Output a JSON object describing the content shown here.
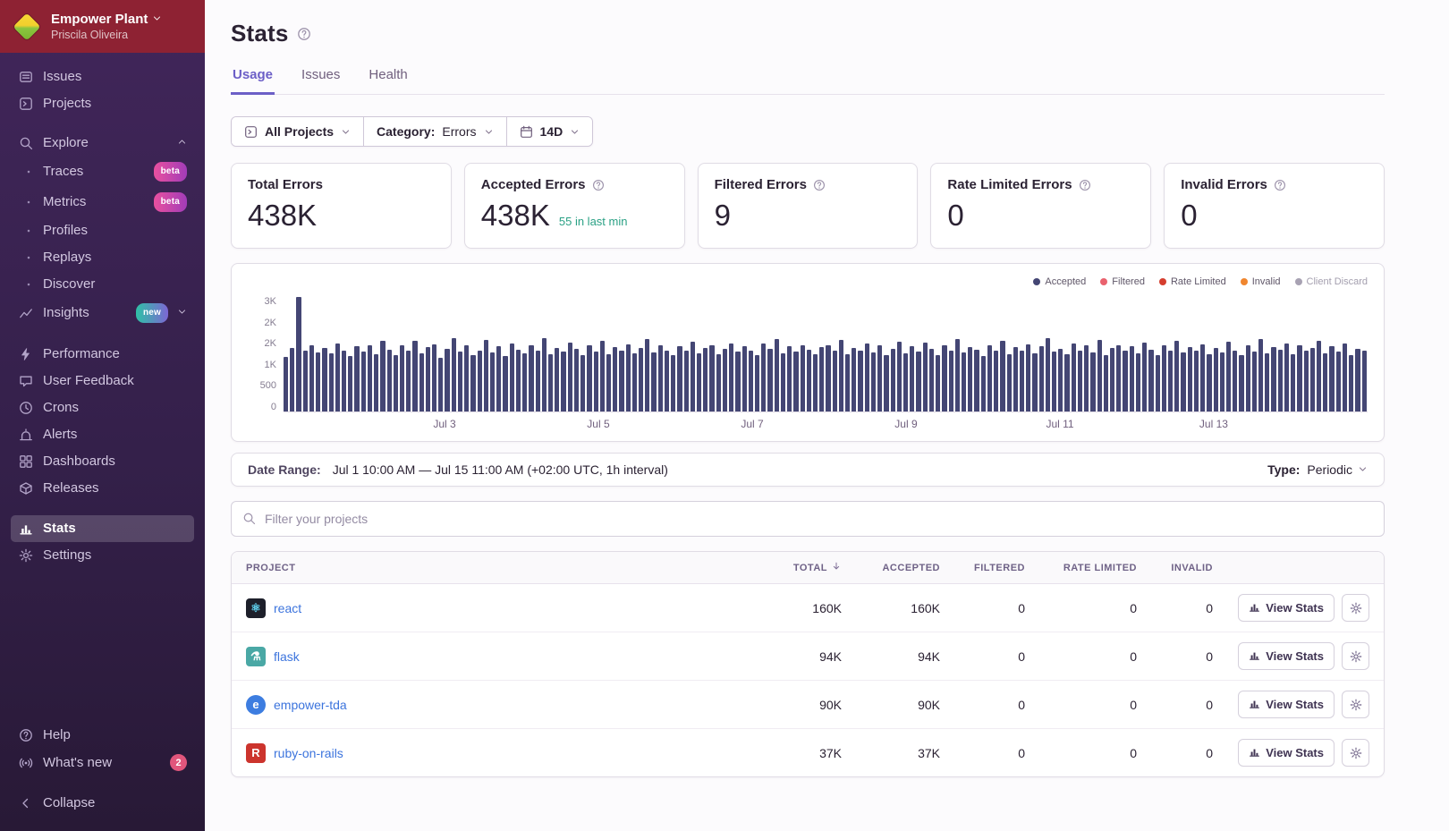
{
  "theme": {
    "accent": "#6c5fc7",
    "link_blue": "#3c74dd",
    "success_green": "#2ba185",
    "bar_color": "#444674",
    "org_header_red": "#8e2233"
  },
  "sidebar": {
    "org": {
      "name": "Empower Plant",
      "user": "Priscila Oliveira"
    },
    "sections": [
      {
        "items": [
          {
            "label": "Issues",
            "icon": "issues"
          },
          {
            "label": "Projects",
            "icon": "projects"
          }
        ]
      },
      {
        "header": {
          "label": "Explore",
          "icon": "search"
        },
        "items": [
          {
            "label": "Traces",
            "icon": "dot",
            "badge": "beta"
          },
          {
            "label": "Metrics",
            "icon": "dot",
            "badge": "beta"
          },
          {
            "label": "Profiles",
            "icon": "dot"
          },
          {
            "label": "Replays",
            "icon": "dot"
          },
          {
            "label": "Discover",
            "icon": "dot"
          },
          {
            "label": "Insights",
            "icon": "insights",
            "badge": "new",
            "chevron": true
          }
        ]
      },
      {
        "items": [
          {
            "label": "Performance",
            "icon": "performance"
          },
          {
            "label": "User Feedback",
            "icon": "feedback"
          },
          {
            "label": "Crons",
            "icon": "crons"
          },
          {
            "label": "Alerts",
            "icon": "alerts"
          },
          {
            "label": "Dashboards",
            "icon": "dashboards"
          },
          {
            "label": "Releases",
            "icon": "releases"
          },
          {
            "label": "Stats",
            "icon": "stats",
            "active": true,
            "gap_before": true
          },
          {
            "label": "Settings",
            "icon": "settings"
          }
        ]
      }
    ],
    "footer": [
      {
        "label": "Help",
        "icon": "help"
      },
      {
        "label": "What's new",
        "icon": "whats-new",
        "count": "2"
      },
      {
        "label": "Collapse",
        "icon": "collapse",
        "gap_before": true
      }
    ]
  },
  "header": {
    "title": "Stats",
    "tabs": [
      {
        "label": "Usage",
        "active": true
      },
      {
        "label": "Issues"
      },
      {
        "label": "Health"
      }
    ]
  },
  "filters": {
    "projects_label": "All Projects",
    "category_label": "Category:",
    "category_value": "Errors",
    "range_label": "14D"
  },
  "cards": [
    {
      "title": "Total Errors",
      "value": "438K",
      "has_help": false
    },
    {
      "title": "Accepted Errors",
      "value": "438K",
      "sub": "55 in last min",
      "has_help": true
    },
    {
      "title": "Filtered Errors",
      "value": "9",
      "has_help": true
    },
    {
      "title": "Rate Limited Errors",
      "value": "0",
      "has_help": true
    },
    {
      "title": "Invalid Errors",
      "value": "0",
      "has_help": true
    }
  ],
  "chart_data": {
    "type": "bar",
    "x_range": [
      "Jul 1 10:00 AM",
      "Jul 15 11:00 AM"
    ],
    "interval": "1h",
    "ylim": [
      0,
      3000
    ],
    "y_tick_labels_top_down": [
      "3K",
      "2K",
      "2K",
      "1K",
      "500",
      "0"
    ],
    "x_tick_labels": [
      "Jul 3",
      "Jul 5",
      "Jul 7",
      "Jul 9",
      "Jul 11",
      "Jul 13"
    ],
    "x_tick_positions_pct": [
      14.29,
      28.57,
      42.86,
      57.14,
      71.43,
      85.71
    ],
    "grid": false,
    "legend_position": "top-right",
    "legend": [
      {
        "label": "Accepted",
        "color": "#444674"
      },
      {
        "label": "Filtered",
        "color": "#e9626e"
      },
      {
        "label": "Rate Limited",
        "color": "#d53e2f"
      },
      {
        "label": "Invalid",
        "color": "#f0862f"
      },
      {
        "label": "Client Discard",
        "color": "#a8a2b3",
        "muted": true
      }
    ],
    "series": [
      {
        "name": "Accepted",
        "color": "#444674",
        "values": [
          1420,
          1650,
          2950,
          1580,
          1700,
          1520,
          1640,
          1490,
          1760,
          1580,
          1430,
          1690,
          1550,
          1720,
          1480,
          1830,
          1600,
          1450,
          1700,
          1560,
          1820,
          1500,
          1660,
          1740,
          1380,
          1620,
          1900,
          1540,
          1700,
          1460,
          1580,
          1840,
          1520,
          1680,
          1440,
          1760,
          1600,
          1500,
          1720,
          1580,
          1900,
          1480,
          1650,
          1550,
          1780,
          1620,
          1460,
          1700,
          1540,
          1820,
          1480,
          1660,
          1580,
          1740,
          1500,
          1640,
          1860,
          1520,
          1700,
          1580,
          1450,
          1680,
          1560,
          1800,
          1500,
          1640,
          1720,
          1480,
          1620,
          1760,
          1540,
          1690,
          1580,
          1460,
          1750,
          1620,
          1880,
          1500,
          1680,
          1540,
          1720,
          1600,
          1480,
          1660,
          1720,
          1560,
          1840,
          1480,
          1640,
          1580,
          1760,
          1520,
          1700,
          1460,
          1620,
          1800,
          1500,
          1680,
          1540,
          1780,
          1620,
          1460,
          1720,
          1580,
          1860,
          1520,
          1660,
          1600,
          1440,
          1700,
          1560,
          1820,
          1480,
          1660,
          1580,
          1740,
          1500,
          1680,
          1900,
          1540,
          1620,
          1480,
          1760,
          1580,
          1700,
          1520,
          1840,
          1460,
          1640,
          1720,
          1560,
          1680,
          1500,
          1780,
          1600,
          1460,
          1700,
          1560,
          1820,
          1520,
          1660,
          1580,
          1740,
          1480,
          1650,
          1520,
          1800,
          1580,
          1460,
          1720,
          1540,
          1880,
          1500,
          1660,
          1600,
          1760,
          1480,
          1700,
          1560,
          1640,
          1820,
          1500,
          1680,
          1540,
          1760,
          1460,
          1620,
          1580
        ]
      }
    ]
  },
  "date_range": {
    "label": "Date Range:",
    "value": "Jul 1 10:00 AM — Jul 15 11:00 AM (+02:00 UTC, 1h interval)",
    "type_label": "Type:",
    "type_value": "Periodic"
  },
  "project_filter": {
    "placeholder": "Filter your projects"
  },
  "table": {
    "headers": [
      {
        "label": "Project"
      },
      {
        "label": "Total",
        "sort": "desc",
        "num": true
      },
      {
        "label": "Accepted",
        "num": true
      },
      {
        "label": "Filtered",
        "num": true
      },
      {
        "label": "Rate Limited",
        "num": true
      },
      {
        "label": "Invalid",
        "num": true
      },
      {
        "label": ""
      }
    ],
    "action_label": "View Stats",
    "rows": [
      {
        "project": "react",
        "glyph": "⚛",
        "icon_bg": "#1d1f2a",
        "icon_fg": "#62d7f5",
        "shape": "square",
        "total": "160K",
        "accepted": "160K",
        "filtered": "0",
        "rate_limited": "0",
        "invalid": "0"
      },
      {
        "project": "flask",
        "glyph": "⚗",
        "icon_bg": "#4aa8a5",
        "icon_fg": "#ffffff",
        "shape": "square",
        "total": "94K",
        "accepted": "94K",
        "filtered": "0",
        "rate_limited": "0",
        "invalid": "0"
      },
      {
        "project": "empower-tda",
        "glyph": "e",
        "icon_bg": "#3d7de0",
        "icon_fg": "#ffffff",
        "shape": "circle",
        "total": "90K",
        "accepted": "90K",
        "filtered": "0",
        "rate_limited": "0",
        "invalid": "0"
      },
      {
        "project": "ruby-on-rails",
        "glyph": "R",
        "icon_bg": "#cc342d",
        "icon_fg": "#ffffff",
        "shape": "square",
        "total": "37K",
        "accepted": "37K",
        "filtered": "0",
        "rate_limited": "0",
        "invalid": "0"
      }
    ]
  }
}
